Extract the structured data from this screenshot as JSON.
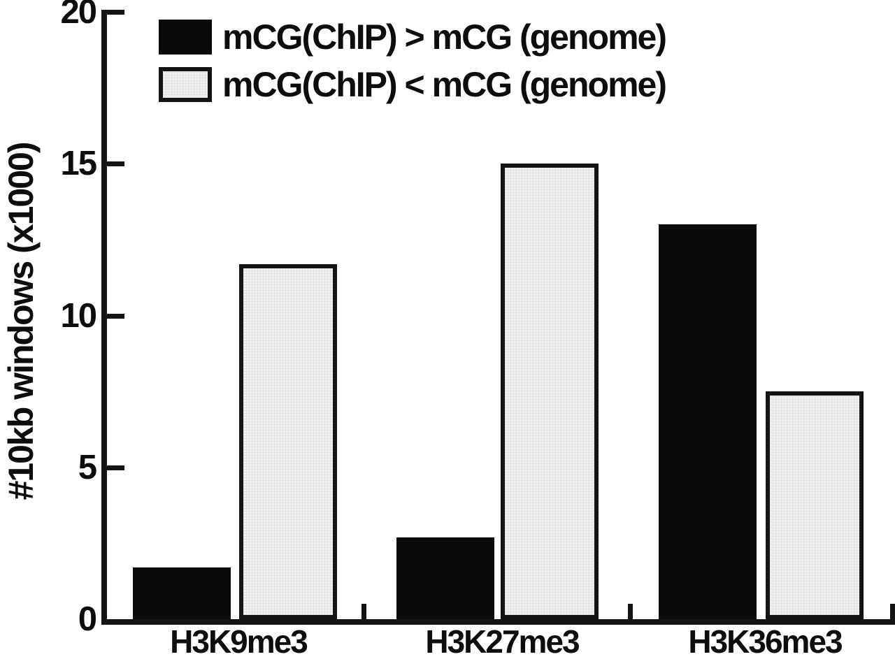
{
  "chart_data": {
    "type": "bar",
    "title": "",
    "xlabel": "",
    "ylabel": "#10kb windows (x1000)",
    "ylim": [
      0,
      20
    ],
    "yticks": [
      0,
      5,
      10,
      15,
      20
    ],
    "categories": [
      "H3K9me3",
      "H3K27me3",
      "H3K36me3"
    ],
    "series": [
      {
        "key": "chip-greater-than-genome",
        "name": "mCG(ChIP) > mCG (genome)",
        "fill": "#0a0a0a",
        "border": "#0a0a0a",
        "textured": false,
        "values": [
          1.7,
          2.7,
          13.0
        ]
      },
      {
        "key": "chip-less-than-genome",
        "name": "mCG(ChIP) < mCG (genome)",
        "fill": "#efefef",
        "border": "#141414",
        "textured": true,
        "values": [
          11.7,
          15.0,
          7.5
        ]
      }
    ],
    "legend_position": "top-left",
    "grid": false,
    "axis_color": "#141414",
    "background_color": "#ffffff"
  }
}
